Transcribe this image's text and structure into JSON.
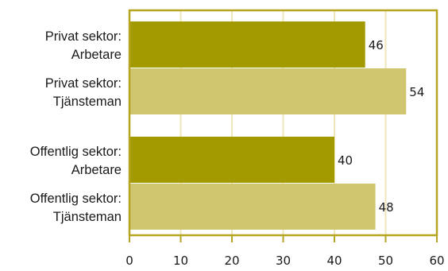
{
  "chart_data": {
    "type": "bar",
    "orientation": "horizontal",
    "categories": [
      [
        "Privat sektor:",
        "Arbetare"
      ],
      [
        "Privat sektor:",
        "Tjänsteman"
      ],
      [
        "Offentlig sektor:",
        "Arbetare"
      ],
      [
        "Offentlig sektor:",
        "Tjänsteman"
      ]
    ],
    "values": [
      46,
      54,
      40,
      48
    ],
    "data_labels": [
      "46",
      "54",
      "40",
      "48"
    ],
    "bar_colors": [
      "#a39a00",
      "#cfc66f",
      "#a39a00",
      "#cfc66f"
    ],
    "xlim": [
      0,
      60
    ],
    "xticks": [
      "0",
      "10",
      "20",
      "30",
      "40",
      "50",
      "60"
    ],
    "xtick_values": [
      0,
      10,
      20,
      30,
      40,
      50,
      60
    ],
    "title": "",
    "xlabel": "",
    "ylabel": "",
    "grid": true,
    "grid_color": "#ece6b8",
    "frame_color": "#b5a520",
    "legend": "none"
  }
}
